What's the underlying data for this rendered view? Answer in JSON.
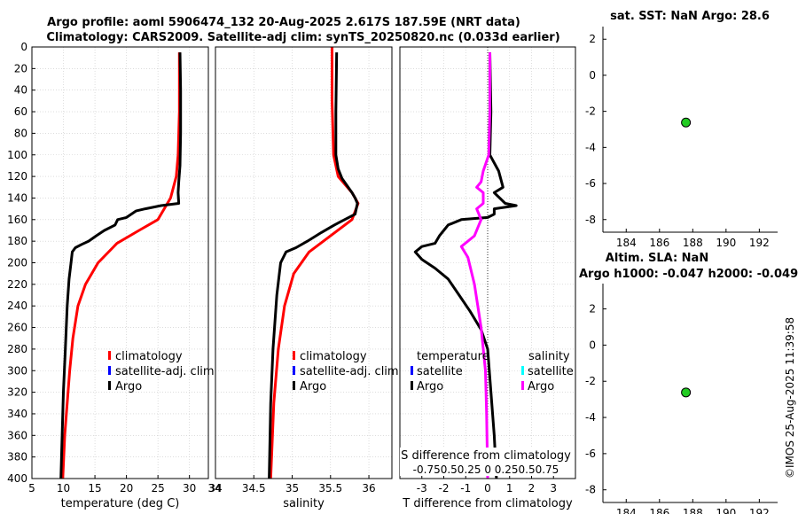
{
  "title": {
    "line1": "Argo profile: aoml 5906474_132 20-Aug-2025 2.617S 187.59E (NRT data)",
    "line2": "Climatology: CARS2009. Satellite-adj clim: synTS_20250820.nc (0.033d earlier)"
  },
  "timestamp": "©IMOS 25-Aug-2025 11:39:58",
  "colors": {
    "climatology": "#ff0000",
    "satellite": "#0000ff",
    "argo": "#000000",
    "satellite_s": "#00ffff",
    "salinity_diff": "#ff00ff",
    "marker": "#22cc22"
  },
  "chart_data": [
    {
      "id": "temp",
      "type": "line",
      "xlabel": "temperature (deg C)",
      "ylabel": "",
      "xlim": [
        5,
        33
      ],
      "ylim": [
        0,
        400
      ],
      "y_inverted": true,
      "grid": true,
      "xticks": [
        5,
        10,
        15,
        20,
        25,
        30
      ],
      "yticks": [
        0,
        20,
        40,
        60,
        80,
        100,
        120,
        140,
        160,
        180,
        200,
        220,
        240,
        260,
        280,
        300,
        320,
        340,
        360,
        380,
        400
      ],
      "legend": [
        "climatology",
        "satellite-adj. clim",
        "Argo"
      ],
      "series": [
        {
          "name": "climatology",
          "color": "#ff0000",
          "points": [
            [
              28.4,
              5
            ],
            [
              28.4,
              60
            ],
            [
              28.2,
              100
            ],
            [
              27.9,
              120
            ],
            [
              27.0,
              140
            ],
            [
              25.0,
              160
            ],
            [
              22.0,
              170
            ],
            [
              18.5,
              182
            ],
            [
              15.5,
              200
            ],
            [
              13.5,
              220
            ],
            [
              12.3,
              240
            ],
            [
              11.5,
              270
            ],
            [
              11.0,
              300
            ],
            [
              10.6,
              330
            ],
            [
              10.2,
              360
            ],
            [
              9.9,
              400
            ]
          ]
        },
        {
          "name": "Argo",
          "color": "#000000",
          "points": [
            [
              28.5,
              5
            ],
            [
              28.6,
              40
            ],
            [
              28.6,
              80
            ],
            [
              28.5,
              110
            ],
            [
              28.3,
              125
            ],
            [
              28.2,
              135
            ],
            [
              28.3,
              145
            ],
            [
              25.5,
              147
            ],
            [
              23.0,
              150
            ],
            [
              21.5,
              152
            ],
            [
              20.0,
              158
            ],
            [
              18.6,
              160
            ],
            [
              18.2,
              165
            ],
            [
              16.5,
              170
            ],
            [
              15.2,
              175
            ],
            [
              14.0,
              180
            ],
            [
              12.9,
              183
            ],
            [
              11.9,
              186
            ],
            [
              11.4,
              190
            ],
            [
              11.2,
              200
            ],
            [
              10.9,
              215
            ],
            [
              10.6,
              240
            ],
            [
              10.3,
              280
            ],
            [
              10.0,
              320
            ],
            [
              9.8,
              360
            ],
            [
              9.6,
              400
            ]
          ]
        }
      ]
    },
    {
      "id": "sal",
      "type": "line",
      "xlabel": "salinity",
      "ylabel": "",
      "xlim": [
        34,
        36.3
      ],
      "ylim": [
        0,
        400
      ],
      "y_inverted": true,
      "grid": true,
      "xticks": [
        34,
        34.5,
        35,
        35.5,
        36
      ],
      "legend": [
        "climatology",
        "satellite-adj. clim",
        "Argo"
      ],
      "series": [
        {
          "name": "climatology",
          "color": "#ff0000",
          "points": [
            [
              35.52,
              0
            ],
            [
              35.52,
              50
            ],
            [
              35.54,
              100
            ],
            [
              35.6,
              120
            ],
            [
              35.78,
              135
            ],
            [
              35.86,
              145
            ],
            [
              35.78,
              160
            ],
            [
              35.5,
              175
            ],
            [
              35.22,
              190
            ],
            [
              35.02,
              210
            ],
            [
              34.9,
              240
            ],
            [
              34.82,
              280
            ],
            [
              34.76,
              330
            ],
            [
              34.72,
              400
            ]
          ]
        },
        {
          "name": "Argo",
          "color": "#000000",
          "points": [
            [
              35.58,
              5
            ],
            [
              35.57,
              60
            ],
            [
              35.57,
              100
            ],
            [
              35.6,
              113
            ],
            [
              35.65,
              122
            ],
            [
              35.78,
              135
            ],
            [
              35.82,
              140
            ],
            [
              35.85,
              145
            ],
            [
              35.82,
              155
            ],
            [
              35.55,
              165
            ],
            [
              35.38,
              172
            ],
            [
              35.2,
              180
            ],
            [
              35.05,
              186
            ],
            [
              34.92,
              190
            ],
            [
              34.85,
              200
            ],
            [
              34.8,
              230
            ],
            [
              34.75,
              280
            ],
            [
              34.72,
              330
            ],
            [
              34.7,
              400
            ]
          ]
        }
      ]
    },
    {
      "id": "diff",
      "type": "line",
      "xlabel": "T difference from climatology",
      "x2label": "S difference from climatology",
      "x2ticks_label": "-0.750.50.25 0 0.250.50.75",
      "xlim": [
        -4,
        4
      ],
      "ylim": [
        0,
        400
      ],
      "y_inverted": true,
      "grid": true,
      "xticks": [
        -3,
        -2,
        -1,
        0,
        1,
        2,
        3
      ],
      "legend_t": {
        "title": "temperature",
        "items": [
          "satellite",
          "Argo"
        ]
      },
      "legend_s": {
        "title": "salinity",
        "items": [
          "satellite",
          "Argo"
        ]
      },
      "series": [
        {
          "name": "T Argo",
          "color": "#000000",
          "points": [
            [
              0.1,
              5
            ],
            [
              0.15,
              60
            ],
            [
              0.1,
              100
            ],
            [
              0.5,
              115
            ],
            [
              0.7,
              130
            ],
            [
              0.3,
              135
            ],
            [
              0.8,
              145
            ],
            [
              1.3,
              147
            ],
            [
              0.3,
              150
            ],
            [
              0.3,
              155
            ],
            [
              0.0,
              158
            ],
            [
              -1.2,
              160
            ],
            [
              -1.8,
              165
            ],
            [
              -2.0,
              170
            ],
            [
              -2.2,
              175
            ],
            [
              -2.4,
              182
            ],
            [
              -3.0,
              185
            ],
            [
              -3.3,
              190
            ],
            [
              -3.0,
              197
            ],
            [
              -2.4,
              205
            ],
            [
              -1.8,
              215
            ],
            [
              -1.3,
              230
            ],
            [
              -0.8,
              245
            ],
            [
              -0.3,
              262
            ],
            [
              0.0,
              280
            ],
            [
              0.15,
              320
            ],
            [
              0.3,
              360
            ],
            [
              0.4,
              400
            ]
          ]
        },
        {
          "name": "S Argo",
          "color": "#ff00ff",
          "points": [
            [
              0.1,
              5
            ],
            [
              0.1,
              60
            ],
            [
              0.05,
              100
            ],
            [
              -0.2,
              115
            ],
            [
              -0.3,
              125
            ],
            [
              -0.5,
              130
            ],
            [
              -0.2,
              135
            ],
            [
              -0.2,
              145
            ],
            [
              -0.5,
              150
            ],
            [
              -0.3,
              160
            ],
            [
              -0.6,
              175
            ],
            [
              -1.2,
              185
            ],
            [
              -0.9,
              195
            ],
            [
              -0.6,
              220
            ],
            [
              -0.3,
              260
            ],
            [
              -0.1,
              300
            ],
            [
              -0.05,
              340
            ],
            [
              0.0,
              400
            ]
          ]
        }
      ]
    },
    {
      "id": "sst",
      "type": "scatter",
      "title": "sat. SST: NaN Argo: 28.6",
      "xlim": [
        182.6,
        193.1
      ],
      "ylim": [
        -8.7,
        2.7
      ],
      "grid": false,
      "xticks": [
        184,
        186,
        188,
        190,
        192
      ],
      "yticks": [
        2,
        0,
        -2,
        -4,
        -6,
        -8
      ],
      "points": [
        {
          "x": 187.59,
          "y": -2.617
        }
      ]
    },
    {
      "id": "sla",
      "type": "scatter",
      "title": "Altim. SLA: NaN",
      "subtitle": "Argo h1000: -0.047 h2000: -0.049",
      "xlim": [
        182.6,
        193.1
      ],
      "ylim": [
        -8.7,
        3.4
      ],
      "grid": false,
      "xticks": [
        184,
        186,
        188,
        190,
        192
      ],
      "yticks": [
        2,
        0,
        -2,
        -4,
        -6,
        -8
      ],
      "points": [
        {
          "x": 187.59,
          "y": -2.617
        }
      ]
    }
  ]
}
